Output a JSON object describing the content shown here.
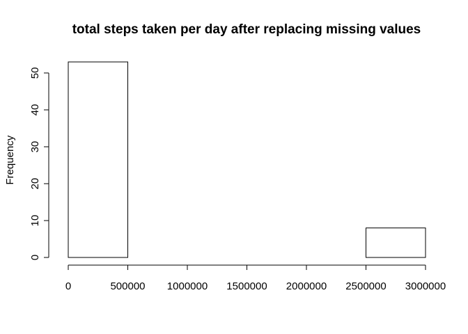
{
  "chart_data": {
    "type": "bar",
    "title": "total steps taken per day after replacing missing values",
    "xlabel": "",
    "ylabel": "Frequency",
    "bins": [
      {
        "start": 0,
        "end": 500000,
        "count": 53
      },
      {
        "start": 500000,
        "end": 1000000,
        "count": 0
      },
      {
        "start": 1000000,
        "end": 1500000,
        "count": 0
      },
      {
        "start": 1500000,
        "end": 2000000,
        "count": 0
      },
      {
        "start": 2000000,
        "end": 2500000,
        "count": 0
      },
      {
        "start": 2500000,
        "end": 3000000,
        "count": 8
      }
    ],
    "xlim": [
      0,
      3000000
    ],
    "ylim": [
      0,
      53
    ],
    "xticks": [
      "0",
      "500000",
      "1000000",
      "1500000",
      "2000000",
      "2500000",
      "3000000"
    ],
    "yticks": [
      "0",
      "10",
      "20",
      "30",
      "40",
      "50"
    ],
    "grid": false,
    "bar_fill": "#ffffff",
    "bar_stroke": "#000000"
  }
}
